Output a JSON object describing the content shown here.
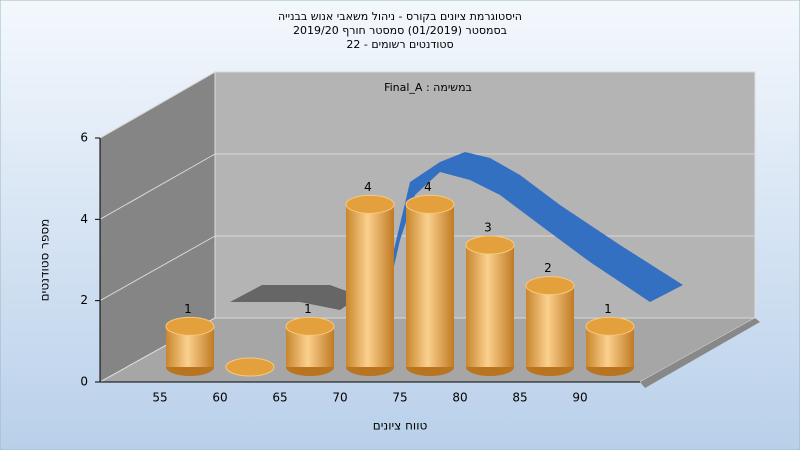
{
  "chart_data": {
    "type": "bar",
    "title": "היסטוגרמת ציונים בקורס - ניהול משאבי אנוש בבנייה",
    "subtitle": "בסמסטר (01/2019)  סמסטר חורף 2019/20",
    "subtitle2": "סטודנטים רשומים - 22",
    "annotation": "Final_A : במשימה",
    "x_label": "טווח ציונים",
    "y_label": "מספר סטודנטים",
    "categories": [
      "55",
      "60",
      "65",
      "70",
      "75",
      "80",
      "85",
      "90"
    ],
    "values": [
      1,
      0,
      1,
      4,
      4,
      3,
      2,
      1
    ],
    "color": "#e8a84a",
    "ylim": [
      0,
      6
    ],
    "yticks": [
      0,
      2,
      4,
      6
    ],
    "grid": true
  }
}
